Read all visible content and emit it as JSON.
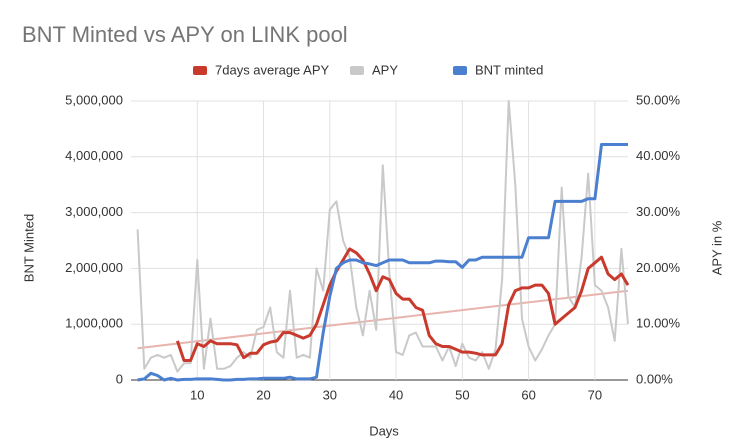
{
  "chart_data": {
    "type": "line",
    "title": "BNT Minted vs APY on LINK pool",
    "xlabel": "Days",
    "ylabel": "BNT Minted",
    "y2label": "APY in %",
    "legend": "top",
    "grid": true,
    "x": [
      1,
      2,
      3,
      4,
      5,
      6,
      7,
      8,
      9,
      10,
      11,
      12,
      13,
      14,
      15,
      16,
      17,
      18,
      19,
      20,
      21,
      22,
      23,
      24,
      25,
      26,
      27,
      28,
      29,
      30,
      31,
      32,
      33,
      34,
      35,
      36,
      37,
      38,
      39,
      40,
      41,
      42,
      43,
      44,
      45,
      46,
      47,
      48,
      49,
      50,
      51,
      52,
      53,
      54,
      55,
      56,
      57,
      58,
      59,
      60,
      61,
      62,
      63,
      64,
      65,
      66,
      67,
      68,
      69,
      70,
      71,
      72,
      73,
      74,
      75
    ],
    "xlim": [
      0,
      75
    ],
    "xticks": [
      10,
      20,
      30,
      40,
      50,
      60,
      70
    ],
    "ylim": [
      0,
      5000000
    ],
    "yticks": [
      0,
      {
        "value": 1000000,
        "label": "1,000,000"
      },
      {
        "value": 2000000,
        "label": "2,000,000"
      },
      {
        "value": 3000000,
        "label": "3,000,000"
      },
      {
        "value": 4000000,
        "label": "4,000,000"
      },
      {
        "value": 5000000,
        "label": "5,000,000"
      }
    ],
    "y2lim": [
      0,
      50
    ],
    "y2ticks": [
      {
        "value": 0,
        "label": "0.00%"
      },
      {
        "value": 10,
        "label": "10.00%"
      },
      {
        "value": 20,
        "label": "20.00%"
      },
      {
        "value": 30,
        "label": "30.00%"
      },
      {
        "value": 40,
        "label": "40.00%"
      },
      {
        "value": 50,
        "label": "50.00%"
      }
    ],
    "trendline": {
      "color": "#e8b4ae",
      "x": [
        1,
        75
      ],
      "values": [
        5.7,
        16
      ],
      "axis": "y2"
    },
    "series": [
      {
        "name": "7days average APY",
        "color": "#c9392c",
        "axis": "y2",
        "values": [
          null,
          null,
          null,
          null,
          null,
          null,
          7,
          3.5,
          3.5,
          6.5,
          6,
          7,
          6.5,
          6.5,
          6.5,
          6.3,
          4,
          4.8,
          4.8,
          6.3,
          6.8,
          7,
          8.5,
          8.5,
          8,
          7.5,
          8,
          10,
          13.5,
          17,
          19.5,
          21.5,
          23.5,
          22.8,
          21.5,
          19,
          16,
          18.5,
          18,
          15.5,
          14.5,
          14.5,
          13,
          12.5,
          8,
          6.5,
          6,
          6,
          5.5,
          5,
          5,
          4.8,
          4.5,
          4.5,
          4.5,
          6.5,
          13.5,
          16,
          16.5,
          16.5,
          17,
          17,
          15.5,
          10,
          11,
          12,
          13,
          16,
          20,
          21,
          22,
          19,
          18,
          19,
          17
        ]
      },
      {
        "name": "APY",
        "color": "#c9c9c9",
        "axis": "y2",
        "values": [
          27,
          2,
          4,
          4.5,
          4,
          4.5,
          1.5,
          3,
          3,
          21.5,
          2,
          11,
          2,
          2,
          2.5,
          4,
          5,
          4,
          9,
          9.5,
          13,
          5,
          4,
          16,
          4,
          4.5,
          4,
          20,
          16,
          30.5,
          32,
          25,
          22,
          13,
          8,
          16,
          9,
          38.5,
          19,
          5,
          4.5,
          8,
          8.5,
          6,
          6,
          6,
          3.5,
          6,
          2.5,
          6.5,
          4,
          3.5,
          5,
          2,
          5.5,
          18,
          50,
          35,
          11,
          6,
          3.5,
          5.5,
          8,
          10,
          34.5,
          15,
          13,
          22,
          37,
          17,
          16,
          13,
          7,
          23.5,
          10
        ]
      },
      {
        "name": "BNT minted",
        "color": "#4b7fd0",
        "values": [
          0,
          20000,
          120000,
          80000,
          0,
          30000,
          0,
          10000,
          10000,
          20000,
          20000,
          20000,
          10000,
          0,
          0,
          10000,
          10000,
          20000,
          20000,
          30000,
          30000,
          30000,
          30000,
          50000,
          20000,
          20000,
          20000,
          50000,
          850000,
          1500000,
          2000000,
          2100000,
          2150000,
          2150000,
          2100000,
          2080000,
          2050000,
          2100000,
          2150000,
          2150000,
          2150000,
          2100000,
          2100000,
          2100000,
          2100000,
          2130000,
          2130000,
          2120000,
          2120000,
          2020000,
          2150000,
          2150000,
          2200000,
          2200000,
          2200000,
          2200000,
          2200000,
          2200000,
          2200000,
          2550000,
          2550000,
          2550000,
          2550000,
          3200000,
          3200000,
          3200000,
          3200000,
          3200000,
          3250000,
          3250000,
          4220000,
          4220000,
          4220000,
          4220000,
          4220000
        ]
      }
    ]
  }
}
